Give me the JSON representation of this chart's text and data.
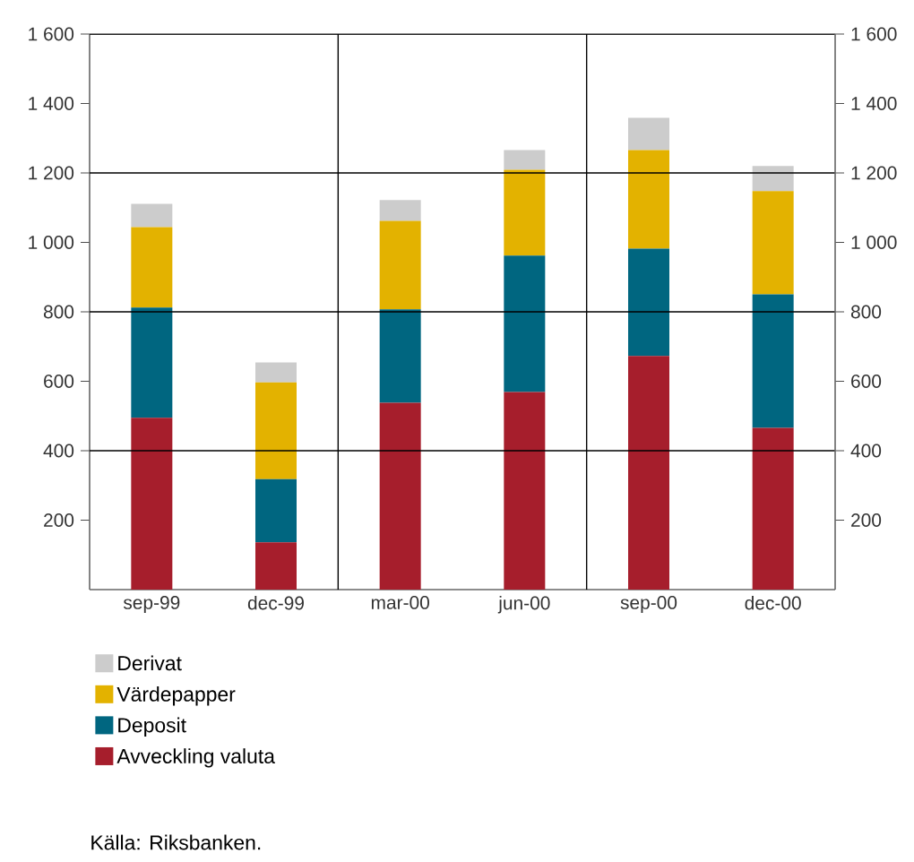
{
  "chart_data": {
    "type": "bar",
    "stacked": true,
    "categories": [
      "sep-99",
      "dec-99",
      "mar-00",
      "jun-00",
      "sep-00",
      "dec-00"
    ],
    "series": [
      {
        "name": "Avveckling valuta",
        "color": "#a61e2c",
        "values": [
          495,
          136,
          538,
          569,
          673,
          466
        ]
      },
      {
        "name": "Deposit",
        "color": "#006680",
        "values": [
          317,
          182,
          269,
          393,
          309,
          384
        ]
      },
      {
        "name": "Värdepapper",
        "color": "#e3b200",
        "values": [
          232,
          279,
          255,
          247,
          284,
          298
        ]
      },
      {
        "name": "Derivat",
        "color": "#cccccc",
        "values": [
          67,
          57,
          60,
          57,
          93,
          72
        ]
      }
    ],
    "ylim": [
      0,
      1600
    ],
    "yticks": [
      200,
      400,
      600,
      800,
      {
        "value": 1000,
        "label": "1 000"
      },
      {
        "value": 1200,
        "label": "1 200"
      },
      {
        "value": 1400,
        "label": "1 400"
      },
      {
        "value": 1600,
        "label": "1 600"
      }
    ],
    "y2lim": [
      0,
      1600
    ],
    "y2ticks": [
      200,
      400,
      600,
      800,
      {
        "value": 1000,
        "label": "1 000"
      },
      {
        "value": 1200,
        "label": "1 200"
      },
      {
        "value": 1400,
        "label": "1 400"
      },
      {
        "value": 1600,
        "label": "1 600"
      }
    ],
    "ref_lines": [
      {
        "axis": "y",
        "value": 400,
        "color": "#000000"
      },
      {
        "axis": "y",
        "value": 800,
        "color": "#000000"
      },
      {
        "axis": "y",
        "value": 1200,
        "color": "#000000"
      }
    ],
    "legend": "bottom",
    "annotations": [
      "Källa: Riksbanken."
    ]
  }
}
